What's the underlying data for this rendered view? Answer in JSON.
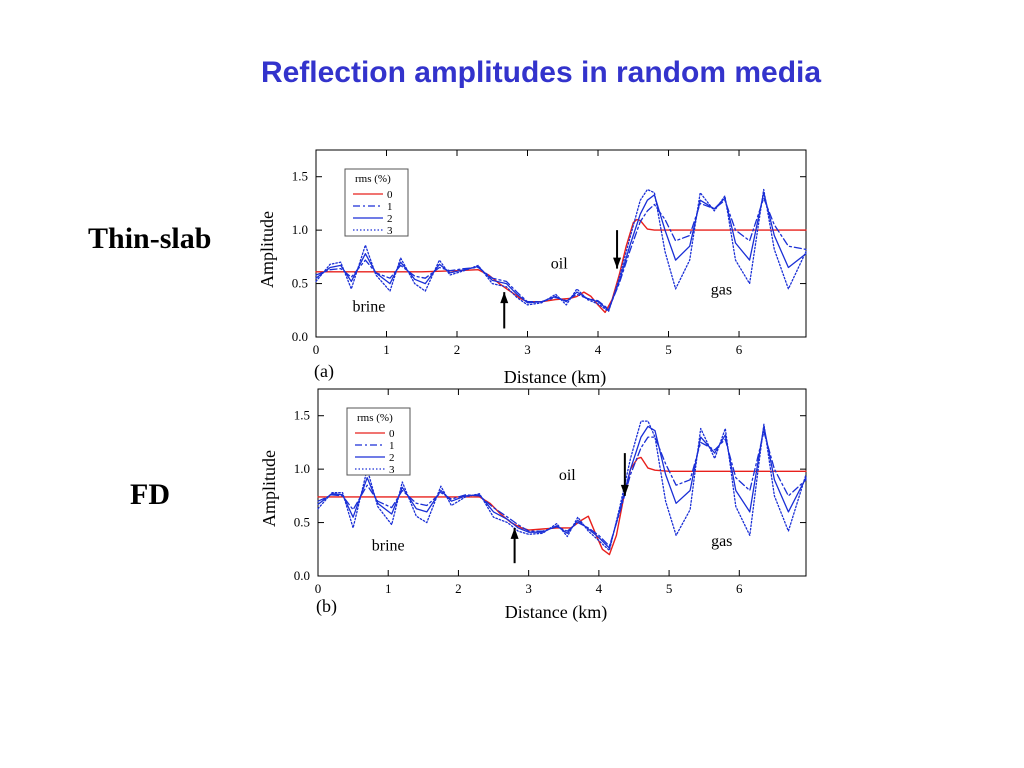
{
  "title": "Reflection amplitudes in random media",
  "side_labels": {
    "top": "Thin-slab",
    "bottom": "FD"
  },
  "colors": {
    "title": "#3333cc",
    "rms0": "#e8201c",
    "rms_other": "#1a2fd6"
  },
  "chart_data": [
    {
      "type": "line",
      "panel_label": "(a)",
      "xlabel": "Distance (km)",
      "ylabel": "Amplitude",
      "xlim": [
        0,
        6.95
      ],
      "ylim": [
        0,
        1.75
      ],
      "xticks": [
        "0",
        "1",
        "2",
        "3",
        "4",
        "5",
        "6"
      ],
      "yticks": [
        "0.0",
        "0.5",
        "1.0",
        "1.5"
      ],
      "legend": {
        "title": "rms  (%)",
        "entries": [
          "0",
          "1",
          "2",
          "3"
        ],
        "position": "top-left"
      },
      "annotations": [
        {
          "text": "brine",
          "x": 0.75,
          "y": 0.24
        },
        {
          "text": "oil",
          "x": 3.45,
          "y": 0.64
        },
        {
          "text": "gas",
          "x": 5.75,
          "y": 0.4
        }
      ],
      "arrows": [
        {
          "x": 2.67,
          "direction": "up",
          "y_tip": 0.42,
          "y_tail": 0.08
        },
        {
          "x": 4.27,
          "direction": "down",
          "y_tip": 0.64,
          "y_tail": 1.0
        }
      ],
      "series": [
        {
          "name": "0",
          "style": "solid",
          "color": "#e8201c",
          "x": [
            0,
            0.3,
            0.8,
            1.5,
            2.0,
            2.3,
            2.45,
            2.6,
            2.75,
            2.9,
            3.0,
            3.2,
            3.4,
            3.6,
            3.7,
            3.8,
            3.9,
            4.0,
            4.1,
            4.2,
            4.3,
            4.4,
            4.5,
            4.55,
            4.6,
            4.65,
            4.7,
            4.8,
            5.0,
            5.5,
            6.0,
            6.5,
            6.95
          ],
          "y": [
            0.61,
            0.61,
            0.61,
            0.61,
            0.62,
            0.63,
            0.58,
            0.5,
            0.43,
            0.36,
            0.33,
            0.33,
            0.35,
            0.36,
            0.38,
            0.42,
            0.38,
            0.3,
            0.23,
            0.35,
            0.58,
            0.85,
            1.07,
            1.1,
            1.09,
            1.05,
            1.01,
            1.0,
            1.0,
            1.0,
            1.0,
            1.0,
            1.0
          ]
        },
        {
          "name": "1",
          "style": "dashdot",
          "color": "#1a2fd6",
          "x": [
            0,
            0.2,
            0.35,
            0.5,
            0.7,
            0.85,
            1.05,
            1.2,
            1.4,
            1.55,
            1.75,
            1.9,
            2.1,
            2.3,
            2.5,
            2.7,
            2.85,
            3.0,
            3.2,
            3.4,
            3.55,
            3.7,
            3.85,
            4.0,
            4.15,
            4.3,
            4.45,
            4.6,
            4.7,
            4.8,
            4.95,
            5.1,
            5.3,
            5.45,
            5.65,
            5.8,
            5.95,
            6.15,
            6.35,
            6.5,
            6.7,
            6.95
          ],
          "y": [
            0.58,
            0.63,
            0.64,
            0.56,
            0.72,
            0.6,
            0.55,
            0.67,
            0.57,
            0.55,
            0.65,
            0.62,
            0.64,
            0.65,
            0.55,
            0.52,
            0.42,
            0.33,
            0.33,
            0.37,
            0.34,
            0.4,
            0.36,
            0.34,
            0.26,
            0.5,
            0.8,
            1.08,
            1.18,
            1.24,
            1.1,
            0.9,
            0.95,
            1.25,
            1.2,
            1.28,
            1.0,
            0.9,
            1.3,
            1.05,
            0.85,
            0.82
          ]
        },
        {
          "name": "2",
          "style": "solid",
          "color": "#1a2fd6",
          "x": [
            0,
            0.2,
            0.35,
            0.5,
            0.7,
            0.85,
            1.05,
            1.2,
            1.4,
            1.55,
            1.75,
            1.9,
            2.1,
            2.3,
            2.5,
            2.7,
            2.85,
            3.0,
            3.2,
            3.4,
            3.55,
            3.7,
            3.85,
            4.0,
            4.15,
            4.3,
            4.45,
            4.6,
            4.7,
            4.8,
            4.95,
            5.1,
            5.3,
            5.45,
            5.65,
            5.8,
            5.95,
            6.15,
            6.35,
            6.5,
            6.7,
            6.95
          ],
          "y": [
            0.55,
            0.65,
            0.67,
            0.52,
            0.78,
            0.6,
            0.5,
            0.7,
            0.54,
            0.5,
            0.68,
            0.6,
            0.63,
            0.66,
            0.53,
            0.5,
            0.4,
            0.32,
            0.33,
            0.38,
            0.33,
            0.42,
            0.36,
            0.33,
            0.25,
            0.52,
            0.85,
            1.15,
            1.28,
            1.33,
            1.0,
            0.72,
            0.85,
            1.28,
            1.2,
            1.3,
            0.88,
            0.72,
            1.35,
            0.95,
            0.65,
            0.78
          ]
        },
        {
          "name": "3",
          "style": "dotted",
          "color": "#1a2fd6",
          "x": [
            0,
            0.2,
            0.35,
            0.5,
            0.7,
            0.85,
            1.05,
            1.2,
            1.4,
            1.55,
            1.75,
            1.9,
            2.1,
            2.3,
            2.5,
            2.7,
            2.85,
            3.0,
            3.2,
            3.4,
            3.55,
            3.7,
            3.85,
            4.0,
            4.15,
            4.3,
            4.45,
            4.6,
            4.7,
            4.8,
            4.95,
            5.1,
            5.3,
            5.45,
            5.65,
            5.8,
            5.95,
            6.15,
            6.35,
            6.5,
            6.7,
            6.95
          ],
          "y": [
            0.52,
            0.68,
            0.7,
            0.45,
            0.86,
            0.58,
            0.43,
            0.74,
            0.5,
            0.43,
            0.72,
            0.58,
            0.62,
            0.67,
            0.5,
            0.47,
            0.37,
            0.3,
            0.32,
            0.4,
            0.3,
            0.45,
            0.35,
            0.31,
            0.24,
            0.55,
            0.92,
            1.28,
            1.38,
            1.35,
            0.8,
            0.45,
            0.72,
            1.35,
            1.18,
            1.32,
            0.72,
            0.5,
            1.38,
            0.82,
            0.45,
            0.8
          ]
        }
      ]
    },
    {
      "type": "line",
      "panel_label": "(b)",
      "xlabel": "Distance (km)",
      "ylabel": "Amplitude",
      "xlim": [
        0,
        6.95
      ],
      "ylim": [
        0,
        1.75
      ],
      "xticks": [
        "0",
        "1",
        "2",
        "3",
        "4",
        "5",
        "6"
      ],
      "yticks": [
        "0.0",
        "0.5",
        "1.0",
        "1.5"
      ],
      "legend": {
        "title": "rms  (%)",
        "entries": [
          "0",
          "1",
          "2",
          "3"
        ],
        "position": "top-left"
      },
      "annotations": [
        {
          "text": "brine",
          "x": 1.0,
          "y": 0.24
        },
        {
          "text": "oil",
          "x": 3.55,
          "y": 0.9
        },
        {
          "text": "gas",
          "x": 5.75,
          "y": 0.28
        }
      ],
      "arrows": [
        {
          "x": 2.8,
          "direction": "up",
          "y_tip": 0.45,
          "y_tail": 0.12
        },
        {
          "x": 4.37,
          "direction": "down",
          "y_tip": 0.75,
          "y_tail": 1.15
        }
      ],
      "series": [
        {
          "name": "0",
          "style": "solid",
          "color": "#e8201c",
          "x": [
            0,
            0.5,
            1.0,
            1.5,
            2.0,
            2.3,
            2.45,
            2.6,
            2.75,
            2.9,
            3.0,
            3.2,
            3.4,
            3.6,
            3.75,
            3.85,
            3.95,
            4.05,
            4.15,
            4.25,
            4.35,
            4.45,
            4.55,
            4.6,
            4.65,
            4.7,
            4.8,
            5.0,
            5.5,
            6.0,
            6.5,
            6.95
          ],
          "y": [
            0.74,
            0.74,
            0.74,
            0.74,
            0.74,
            0.74,
            0.68,
            0.58,
            0.5,
            0.45,
            0.43,
            0.44,
            0.45,
            0.45,
            0.52,
            0.56,
            0.4,
            0.25,
            0.2,
            0.38,
            0.72,
            1.0,
            1.1,
            1.11,
            1.06,
            1.01,
            0.99,
            0.98,
            0.98,
            0.98,
            0.98,
            0.98
          ]
        },
        {
          "name": "1",
          "style": "dashdot",
          "color": "#1a2fd6",
          "x": [
            0,
            0.2,
            0.35,
            0.5,
            0.7,
            0.85,
            1.05,
            1.2,
            1.4,
            1.55,
            1.75,
            1.9,
            2.1,
            2.3,
            2.5,
            2.7,
            2.85,
            3.0,
            3.2,
            3.4,
            3.55,
            3.7,
            3.85,
            4.0,
            4.15,
            4.3,
            4.45,
            4.6,
            4.7,
            4.8,
            4.95,
            5.1,
            5.3,
            5.45,
            5.65,
            5.8,
            5.95,
            6.15,
            6.35,
            6.5,
            6.7,
            6.95
          ],
          "y": [
            0.7,
            0.76,
            0.75,
            0.62,
            0.85,
            0.7,
            0.64,
            0.8,
            0.68,
            0.66,
            0.78,
            0.72,
            0.76,
            0.75,
            0.64,
            0.55,
            0.48,
            0.42,
            0.42,
            0.46,
            0.42,
            0.5,
            0.45,
            0.38,
            0.28,
            0.6,
            0.95,
            1.2,
            1.3,
            1.3,
            1.05,
            0.85,
            0.9,
            1.25,
            1.18,
            1.28,
            0.92,
            0.8,
            1.35,
            1.0,
            0.75,
            0.9
          ]
        },
        {
          "name": "2",
          "style": "solid",
          "color": "#1a2fd6",
          "x": [
            0,
            0.2,
            0.35,
            0.5,
            0.7,
            0.85,
            1.05,
            1.2,
            1.4,
            1.55,
            1.75,
            1.9,
            2.1,
            2.3,
            2.5,
            2.7,
            2.85,
            3.0,
            3.2,
            3.4,
            3.55,
            3.7,
            3.85,
            4.0,
            4.15,
            4.3,
            4.45,
            4.6,
            4.7,
            4.8,
            4.95,
            5.1,
            5.3,
            5.45,
            5.65,
            5.8,
            5.95,
            6.15,
            6.35,
            6.5,
            6.7,
            6.95
          ],
          "y": [
            0.67,
            0.77,
            0.76,
            0.55,
            0.92,
            0.68,
            0.58,
            0.83,
            0.63,
            0.6,
            0.8,
            0.7,
            0.75,
            0.76,
            0.6,
            0.53,
            0.45,
            0.41,
            0.41,
            0.47,
            0.4,
            0.52,
            0.44,
            0.36,
            0.26,
            0.62,
            1.0,
            1.3,
            1.4,
            1.36,
            0.95,
            0.68,
            0.8,
            1.3,
            1.15,
            1.32,
            0.8,
            0.6,
            1.4,
            0.9,
            0.6,
            0.92
          ]
        },
        {
          "name": "3",
          "style": "dotted",
          "color": "#1a2fd6",
          "x": [
            0,
            0.2,
            0.35,
            0.5,
            0.7,
            0.85,
            1.05,
            1.2,
            1.4,
            1.55,
            1.75,
            1.9,
            2.1,
            2.3,
            2.5,
            2.7,
            2.85,
            3.0,
            3.2,
            3.4,
            3.55,
            3.7,
            3.85,
            4.0,
            4.15,
            4.3,
            4.45,
            4.6,
            4.7,
            4.8,
            4.95,
            5.1,
            5.3,
            5.45,
            5.65,
            5.8,
            5.95,
            6.15,
            6.35,
            6.5,
            6.7,
            6.95
          ],
          "y": [
            0.63,
            0.78,
            0.78,
            0.45,
            1.0,
            0.65,
            0.48,
            0.88,
            0.56,
            0.5,
            0.84,
            0.66,
            0.74,
            0.77,
            0.55,
            0.5,
            0.42,
            0.39,
            0.4,
            0.49,
            0.37,
            0.55,
            0.42,
            0.33,
            0.24,
            0.65,
            1.1,
            1.45,
            1.45,
            1.3,
            0.7,
            0.38,
            0.62,
            1.38,
            1.1,
            1.38,
            0.65,
            0.38,
            1.42,
            0.75,
            0.42,
            0.95
          ]
        }
      ]
    }
  ]
}
